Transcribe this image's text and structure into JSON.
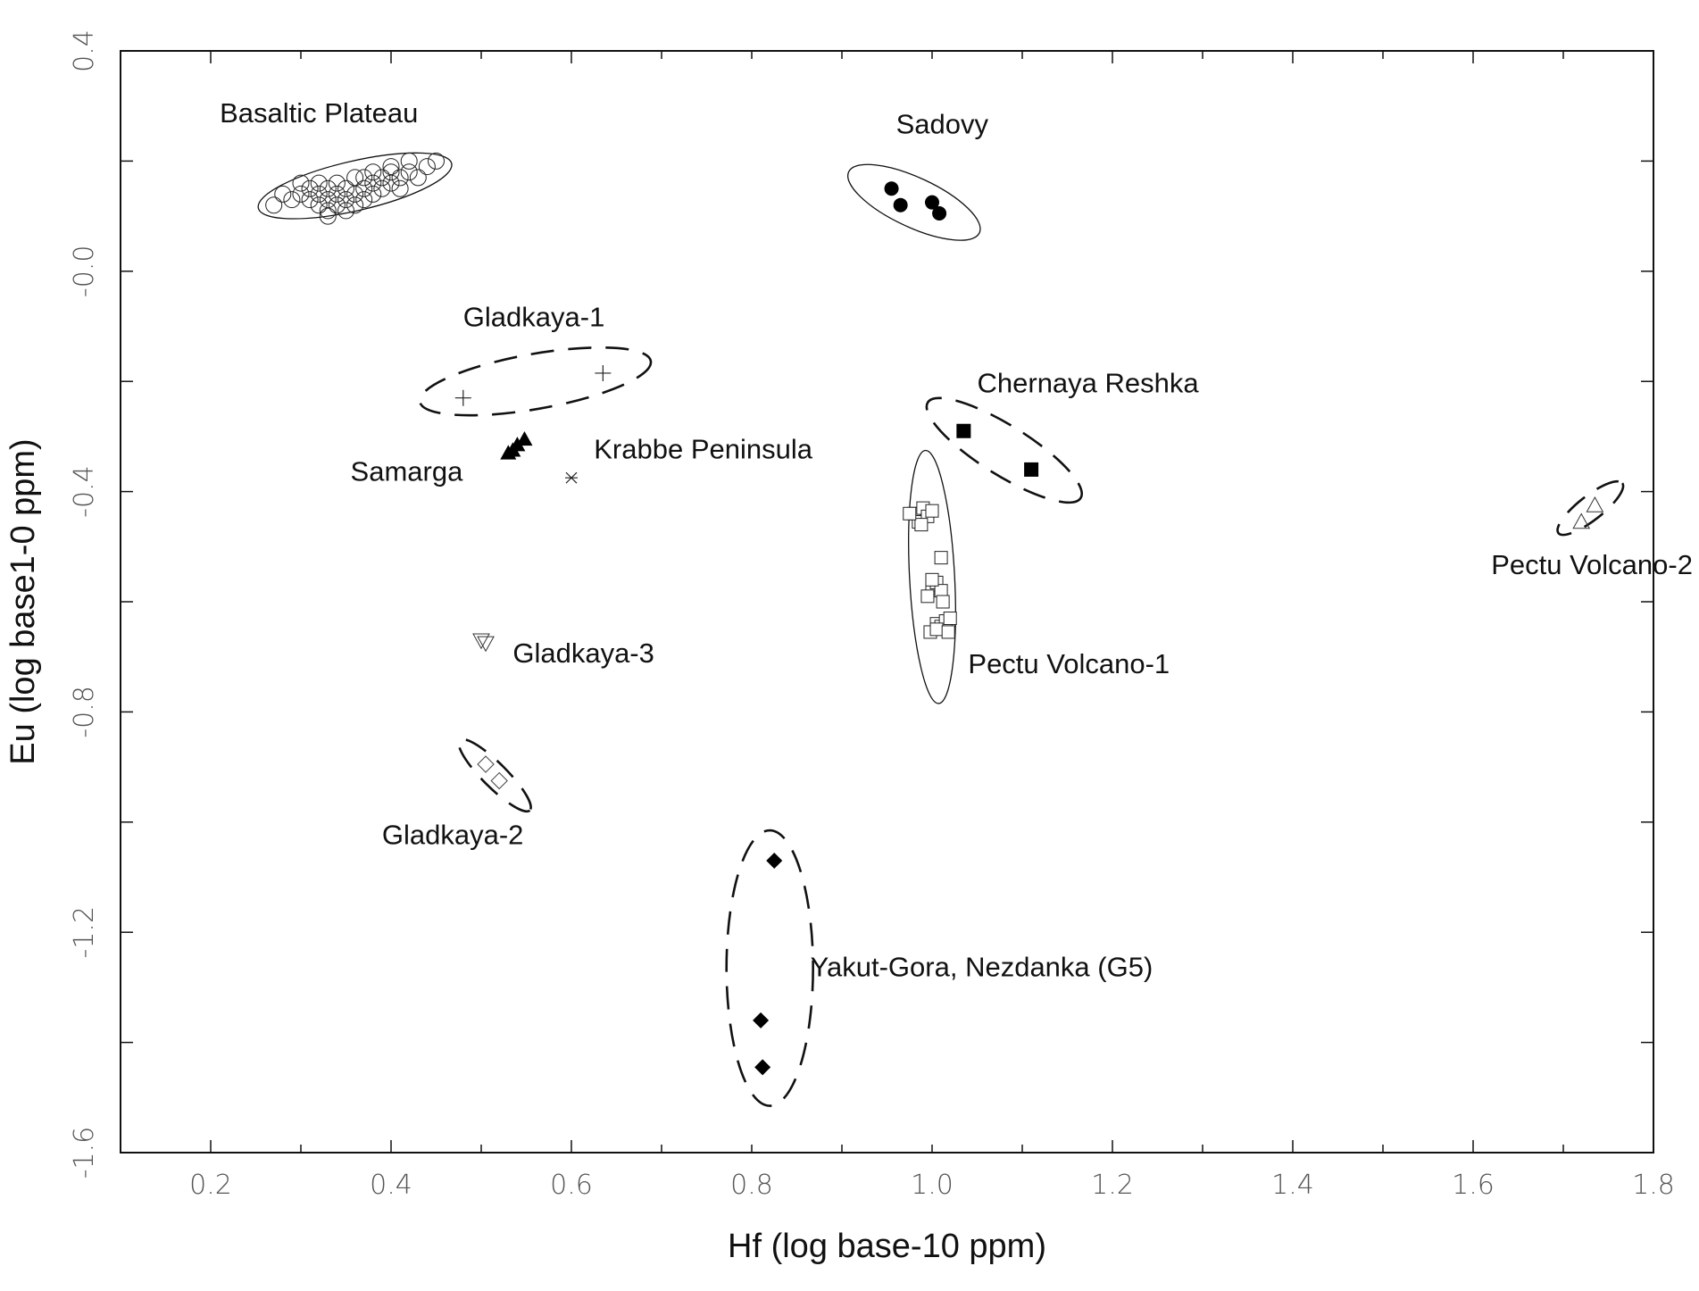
{
  "chart_data": {
    "type": "scatter",
    "title": "",
    "xlabel": "Hf (log base-10 ppm)",
    "ylabel": "Eu (log base1-0 ppm)",
    "xlim": [
      0.1,
      1.8
    ],
    "ylim": [
      -1.6,
      0.4
    ],
    "xticks": [
      "0.2",
      "0.4",
      "0.6",
      "0.8",
      "1.0",
      "1.2",
      "1.4",
      "1.6",
      "1.8"
    ],
    "yticks": [
      {
        "value": 0.4,
        "label": "0.4"
      },
      {
        "value": 0.0,
        "label": "-0.0"
      },
      {
        "value": -0.4,
        "label": "-0.4"
      },
      {
        "value": -0.8,
        "label": "-0.8"
      },
      {
        "value": -1.2,
        "label": "-1.2"
      },
      {
        "value": -1.6,
        "label": "-1.6"
      }
    ],
    "grid": false,
    "series": [
      {
        "name": "Basaltic Plateau",
        "marker": "circle-open",
        "points": [
          [
            0.29,
            0.13
          ],
          [
            0.3,
            0.14
          ],
          [
            0.31,
            0.15
          ],
          [
            0.31,
            0.13
          ],
          [
            0.32,
            0.14
          ],
          [
            0.32,
            0.12
          ],
          [
            0.33,
            0.15
          ],
          [
            0.33,
            0.13
          ],
          [
            0.33,
            0.11
          ],
          [
            0.34,
            0.14
          ],
          [
            0.34,
            0.12
          ],
          [
            0.34,
            0.16
          ],
          [
            0.35,
            0.13
          ],
          [
            0.35,
            0.15
          ],
          [
            0.35,
            0.11
          ],
          [
            0.36,
            0.14
          ],
          [
            0.36,
            0.12
          ],
          [
            0.37,
            0.15
          ],
          [
            0.37,
            0.17
          ],
          [
            0.38,
            0.16
          ],
          [
            0.38,
            0.14
          ],
          [
            0.39,
            0.17
          ],
          [
            0.39,
            0.15
          ],
          [
            0.4,
            0.18
          ],
          [
            0.4,
            0.16
          ],
          [
            0.41,
            0.17
          ],
          [
            0.42,
            0.18
          ],
          [
            0.44,
            0.19
          ],
          [
            0.45,
            0.2
          ],
          [
            0.36,
            0.17
          ],
          [
            0.32,
            0.16
          ],
          [
            0.3,
            0.16
          ],
          [
            0.28,
            0.14
          ],
          [
            0.27,
            0.12
          ],
          [
            0.41,
            0.15
          ],
          [
            0.43,
            0.17
          ],
          [
            0.38,
            0.18
          ],
          [
            0.4,
            0.19
          ],
          [
            0.33,
            0.1
          ],
          [
            0.37,
            0.13
          ],
          [
            0.42,
            0.2
          ]
        ],
        "label_at": [
          0.21,
          0.27
        ],
        "ellipse": {
          "style": "solid",
          "cx": 0.36,
          "cy": 0.155,
          "rx": 0.11,
          "ry": 0.045,
          "angle": -13
        }
      },
      {
        "name": "Sadovy",
        "marker": "circle-filled",
        "points": [
          [
            0.955,
            0.15
          ],
          [
            0.965,
            0.12
          ],
          [
            1.0,
            0.125
          ],
          [
            1.008,
            0.105
          ]
        ],
        "label_at": [
          0.96,
          0.25
        ],
        "ellipse": {
          "style": "solid",
          "cx": 0.98,
          "cy": 0.125,
          "rx": 0.08,
          "ry": 0.045,
          "angle": 25
        }
      },
      {
        "name": "Gladkaya-1",
        "marker": "plus",
        "points": [
          [
            0.48,
            -0.23
          ],
          [
            0.635,
            -0.185
          ]
        ],
        "label_at": [
          0.48,
          -0.1
        ],
        "ellipse": {
          "style": "dashed",
          "cx": 0.56,
          "cy": -0.2,
          "rx": 0.13,
          "ry": 0.05,
          "angle": -10
        }
      },
      {
        "name": "Chernaya Reshka",
        "marker": "square-filled",
        "points": [
          [
            1.035,
            -0.29
          ],
          [
            1.11,
            -0.36
          ]
        ],
        "label_at": [
          1.05,
          -0.22
        ],
        "ellipse": {
          "style": "dashed",
          "cx": 1.08,
          "cy": -0.325,
          "rx": 0.1,
          "ry": 0.045,
          "angle": 32
        }
      },
      {
        "name": "Samarga",
        "marker": "triangle-filled",
        "points": [
          [
            0.535,
            -0.325
          ],
          [
            0.548,
            -0.305
          ],
          [
            0.54,
            -0.315
          ],
          [
            0.53,
            -0.33
          ]
        ],
        "label_at": [
          0.355,
          -0.38
        ]
      },
      {
        "name": "Krabbe Peninsula",
        "marker": "asterisk",
        "points": [
          [
            0.6,
            -0.375
          ]
        ],
        "label_at": [
          0.625,
          -0.34
        ]
      },
      {
        "name": "Pectu Volcano-1",
        "marker": "square-open",
        "points": [
          [
            0.98,
            -0.44
          ],
          [
            0.985,
            -0.455
          ],
          [
            0.99,
            -0.43
          ],
          [
            0.995,
            -0.445
          ],
          [
            0.988,
            -0.46
          ],
          [
            0.975,
            -0.44
          ],
          [
            1.0,
            -0.435
          ],
          [
            1.0,
            -0.57
          ],
          [
            1.005,
            -0.565
          ],
          [
            1.01,
            -0.58
          ],
          [
            1.01,
            -0.52
          ],
          [
            0.995,
            -0.59
          ],
          [
            1.0,
            -0.56
          ],
          [
            1.005,
            -0.64
          ],
          [
            1.01,
            -0.645
          ],
          [
            1.015,
            -0.635
          ],
          [
            1.02,
            -0.63
          ],
          [
            0.998,
            -0.655
          ],
          [
            1.005,
            -0.65
          ],
          [
            1.012,
            -0.6
          ],
          [
            1.018,
            -0.655
          ]
        ],
        "label_at": [
          1.04,
          -0.73
        ],
        "ellipse": {
          "style": "solid",
          "cx": 1.0,
          "cy": -0.555,
          "rx": 0.025,
          "ry": 0.23,
          "angle": -3
        }
      },
      {
        "name": "Pectu Volcano-2",
        "marker": "triangle-open",
        "points": [
          [
            1.72,
            -0.455
          ],
          [
            1.735,
            -0.425
          ]
        ],
        "label_at": [
          1.62,
          -0.55
        ],
        "ellipse": {
          "style": "dashed",
          "cx": 1.73,
          "cy": -0.43,
          "rx": 0.045,
          "ry": 0.022,
          "angle": -38
        }
      },
      {
        "name": "Gladkaya-3",
        "marker": "triangle-down-open",
        "points": [
          [
            0.5,
            -0.67
          ],
          [
            0.505,
            -0.675
          ]
        ],
        "label_at": [
          0.535,
          -0.71
        ]
      },
      {
        "name": "Gladkaya-2",
        "marker": "diamond-open",
        "points": [
          [
            0.505,
            -0.895
          ],
          [
            0.52,
            -0.925
          ]
        ],
        "label_at": [
          0.39,
          -1.04
        ],
        "ellipse": {
          "style": "dashed",
          "cx": 0.515,
          "cy": -0.915,
          "rx": 0.055,
          "ry": 0.022,
          "angle": 45
        }
      },
      {
        "name": "Yakut-Gora, Nezdanka (G5)",
        "marker": "diamond-filled",
        "points": [
          [
            0.825,
            -1.07
          ],
          [
            0.81,
            -1.36
          ],
          [
            0.812,
            -1.445
          ]
        ],
        "label_at": [
          0.865,
          -1.28
        ],
        "ellipse": {
          "style": "dashed",
          "cx": 0.82,
          "cy": -1.265,
          "rx": 0.048,
          "ry": 0.25,
          "angle": 0
        }
      }
    ]
  }
}
